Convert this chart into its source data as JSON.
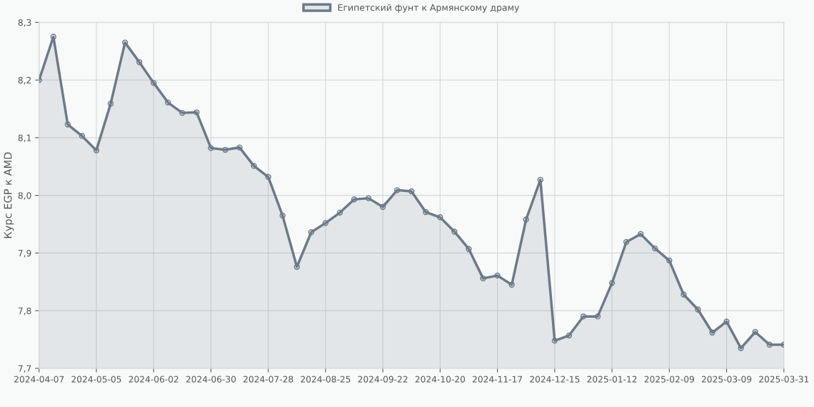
{
  "chart_data": {
    "type": "area",
    "ylabel": "Курс EGP к AMD",
    "categories": [
      "2024-04-07",
      null,
      null,
      null,
      "2024-05-05",
      null,
      null,
      null,
      "2024-06-02",
      null,
      null,
      null,
      "2024-06-30",
      null,
      null,
      null,
      "2024-07-28",
      null,
      null,
      null,
      "2024-08-25",
      null,
      null,
      null,
      "2024-09-22",
      null,
      null,
      null,
      "2024-10-20",
      null,
      null,
      null,
      "2024-11-17",
      null,
      null,
      null,
      "2024-12-15",
      null,
      null,
      null,
      "2025-01-12",
      null,
      null,
      null,
      "2025-02-09",
      null,
      null,
      null,
      "2025-03-09",
      null,
      null,
      null,
      "2025-03-31"
    ],
    "series": [
      {
        "name": "Египетский фунт к Армянскому драму",
        "color": "#6c7a89",
        "values": [
          8.2,
          8.275,
          8.123,
          8.103,
          8.078,
          8.159,
          8.265,
          8.231,
          8.195,
          8.161,
          8.143,
          8.144,
          8.082,
          8.079,
          8.083,
          8.051,
          8.032,
          7.965,
          7.876,
          7.936,
          7.952,
          7.97,
          7.993,
          7.995,
          7.98,
          8.009,
          8.007,
          7.971,
          7.962,
          7.937,
          7.907,
          7.856,
          7.861,
          7.845,
          7.958,
          8.027,
          7.748,
          7.757,
          7.79,
          7.79,
          7.848,
          7.919,
          7.933,
          7.908,
          7.887,
          7.828,
          7.802,
          7.762,
          7.781,
          7.735,
          7.763,
          7.741,
          7.741
        ]
      }
    ],
    "ylim": [
      7.7,
      8.3
    ],
    "yticks": [
      {
        "value": 7.7,
        "label": "7,7"
      },
      {
        "value": 7.8,
        "label": "7,8"
      },
      {
        "value": 7.9,
        "label": "7,9"
      },
      {
        "value": 8.0,
        "label": "8,0"
      },
      {
        "value": 8.1,
        "label": "8,1"
      },
      {
        "value": 8.2,
        "label": "8,2"
      },
      {
        "value": 8.3,
        "label": "8,3"
      }
    ],
    "grid": true,
    "legend": "top",
    "marker": "circle",
    "line_style": "solid"
  }
}
